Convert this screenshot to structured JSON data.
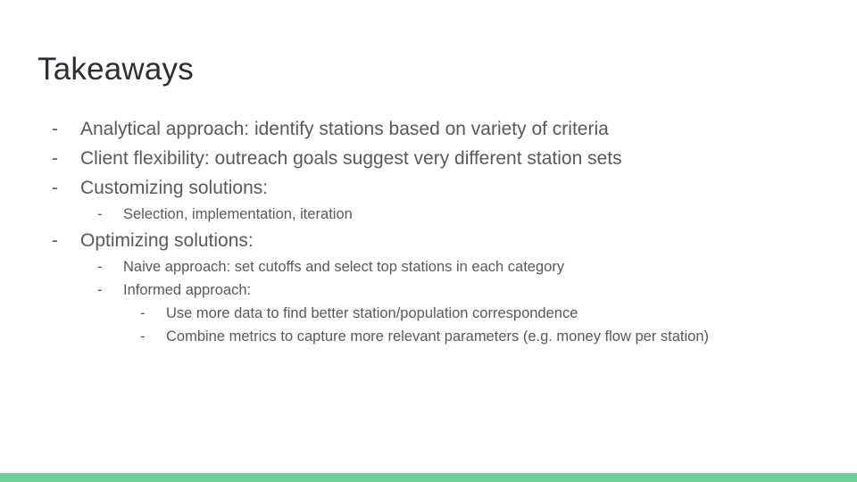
{
  "slide": {
    "title": "Takeaways",
    "bullet_marker": "-",
    "bullets": [
      {
        "level": 0,
        "text": "Analytical approach: identify stations based on variety of criteria"
      },
      {
        "level": 0,
        "text": "Client flexibility: outreach goals suggest very different station sets"
      },
      {
        "level": 0,
        "text": "Customizing solutions:"
      },
      {
        "level": 1,
        "text": "Selection, implementation, iteration"
      },
      {
        "level": 0,
        "text": "Optimizing solutions:"
      },
      {
        "level": 1,
        "text": "Naive approach: set cutoffs and select top stations in each category"
      },
      {
        "level": 1,
        "text": "Informed approach:"
      },
      {
        "level": 2,
        "text": "Use more data to find better station/population correspondence"
      },
      {
        "level": 2,
        "text": "Combine metrics to capture more relevant parameters (e.g. money flow per station)"
      }
    ],
    "colors": {
      "accent_bar": "#6ccf94",
      "title": "#2b2f33",
      "body_text": "#595959"
    }
  }
}
